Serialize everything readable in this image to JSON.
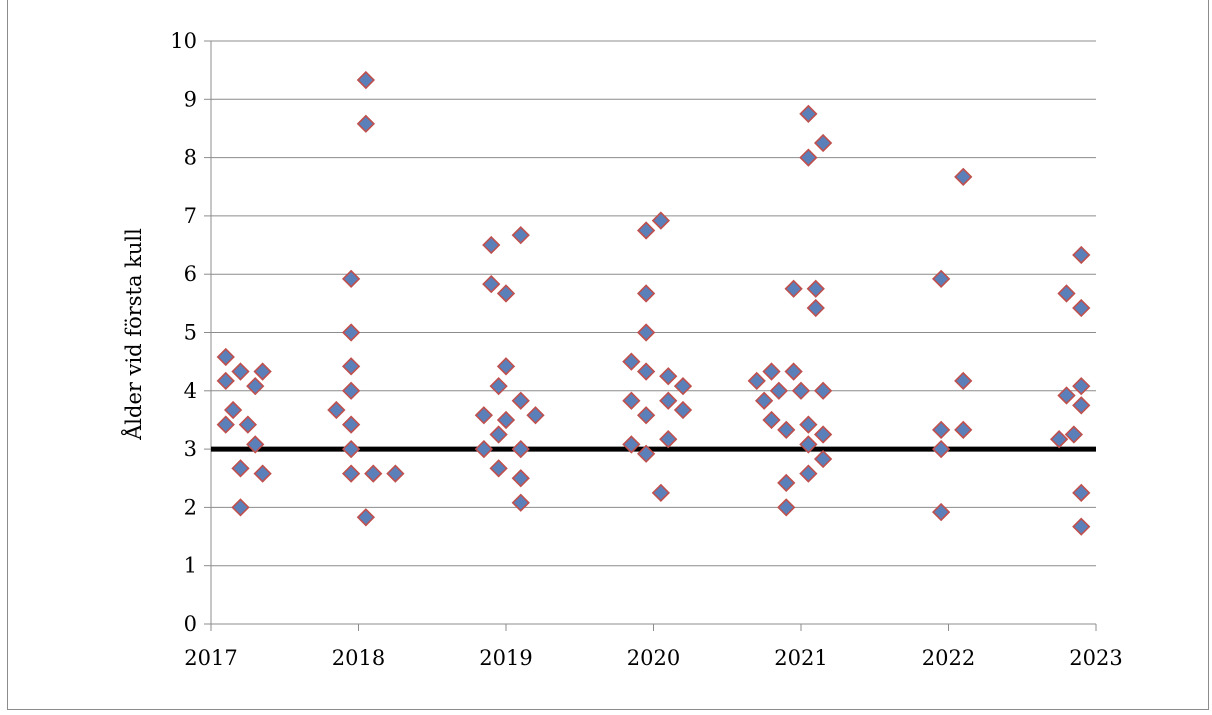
{
  "chart_data": {
    "type": "scatter",
    "title": "",
    "xlabel": "",
    "ylabel": "Ålder vid första kull",
    "xlim": [
      2017,
      2023
    ],
    "ylim": [
      0,
      10
    ],
    "x_ticks": [
      "2017",
      "2018",
      "2019",
      "2020",
      "2021",
      "2022",
      "2023"
    ],
    "y_ticks": [
      "0",
      "1",
      "2",
      "3",
      "4",
      "5",
      "6",
      "7",
      "8",
      "9",
      "10"
    ],
    "grid": "horizontal",
    "legend": "none",
    "reference_line": {
      "y": 3,
      "color": "#000000"
    },
    "marker": {
      "shape": "diamond",
      "fill": "#5b7fb8",
      "stroke": "#c0504d"
    },
    "series": [
      {
        "points": [
          [
            2017.1,
            4.58
          ],
          [
            2017.1,
            4.17
          ],
          [
            2017.1,
            3.42
          ],
          [
            2017.15,
            3.67
          ],
          [
            2017.2,
            4.33
          ],
          [
            2017.2,
            2.67
          ],
          [
            2017.2,
            2.0
          ],
          [
            2017.25,
            3.42
          ],
          [
            2017.3,
            4.08
          ],
          [
            2017.3,
            3.08
          ],
          [
            2017.35,
            4.33
          ],
          [
            2017.35,
            2.58
          ],
          [
            2017.85,
            3.67
          ],
          [
            2017.95,
            5.92
          ],
          [
            2017.95,
            5.0
          ],
          [
            2017.95,
            4.42
          ],
          [
            2017.95,
            4.0
          ],
          [
            2017.95,
            3.42
          ],
          [
            2017.95,
            3.0
          ],
          [
            2017.95,
            2.58
          ],
          [
            2018.05,
            9.33
          ],
          [
            2018.05,
            8.58
          ],
          [
            2018.05,
            1.83
          ],
          [
            2018.1,
            2.58
          ],
          [
            2018.25,
            2.58
          ],
          [
            2018.85,
            3.58
          ],
          [
            2018.85,
            3.0
          ],
          [
            2018.9,
            6.5
          ],
          [
            2018.9,
            5.83
          ],
          [
            2018.95,
            4.08
          ],
          [
            2018.95,
            3.25
          ],
          [
            2018.95,
            2.67
          ],
          [
            2019.0,
            5.67
          ],
          [
            2019.0,
            4.42
          ],
          [
            2019.0,
            3.5
          ],
          [
            2019.1,
            6.67
          ],
          [
            2019.1,
            3.83
          ],
          [
            2019.1,
            3.0
          ],
          [
            2019.1,
            2.5
          ],
          [
            2019.1,
            2.08
          ],
          [
            2019.2,
            3.58
          ],
          [
            2019.85,
            4.5
          ],
          [
            2019.85,
            3.83
          ],
          [
            2019.85,
            3.08
          ],
          [
            2019.95,
            6.75
          ],
          [
            2019.95,
            5.67
          ],
          [
            2019.95,
            5.0
          ],
          [
            2019.95,
            4.33
          ],
          [
            2019.95,
            3.58
          ],
          [
            2019.95,
            2.92
          ],
          [
            2020.05,
            6.92
          ],
          [
            2020.05,
            2.25
          ],
          [
            2020.1,
            4.25
          ],
          [
            2020.1,
            3.83
          ],
          [
            2020.1,
            3.17
          ],
          [
            2020.2,
            4.08
          ],
          [
            2020.2,
            3.67
          ],
          [
            2020.7,
            4.17
          ],
          [
            2020.75,
            3.83
          ],
          [
            2020.8,
            4.33
          ],
          [
            2020.8,
            3.5
          ],
          [
            2020.85,
            4.0
          ],
          [
            2020.9,
            3.33
          ],
          [
            2020.9,
            2.42
          ],
          [
            2020.9,
            2.0
          ],
          [
            2020.95,
            5.75
          ],
          [
            2020.95,
            4.33
          ],
          [
            2021.0,
            4.0
          ],
          [
            2021.05,
            8.75
          ],
          [
            2021.05,
            8.0
          ],
          [
            2021.05,
            3.42
          ],
          [
            2021.05,
            3.08
          ],
          [
            2021.05,
            2.58
          ],
          [
            2021.1,
            5.75
          ],
          [
            2021.1,
            5.42
          ],
          [
            2021.15,
            8.25
          ],
          [
            2021.15,
            4.0
          ],
          [
            2021.15,
            3.25
          ],
          [
            2021.15,
            2.83
          ],
          [
            2021.95,
            5.92
          ],
          [
            2021.95,
            3.33
          ],
          [
            2021.95,
            3.0
          ],
          [
            2021.95,
            1.92
          ],
          [
            2022.1,
            7.67
          ],
          [
            2022.1,
            4.17
          ],
          [
            2022.1,
            3.33
          ],
          [
            2022.75,
            3.17
          ],
          [
            2022.8,
            5.67
          ],
          [
            2022.8,
            3.92
          ],
          [
            2022.85,
            3.25
          ],
          [
            2022.9,
            6.33
          ],
          [
            2022.9,
            5.42
          ],
          [
            2022.9,
            4.08
          ],
          [
            2022.9,
            3.75
          ],
          [
            2022.9,
            2.25
          ],
          [
            2022.9,
            1.67
          ]
        ]
      }
    ]
  }
}
